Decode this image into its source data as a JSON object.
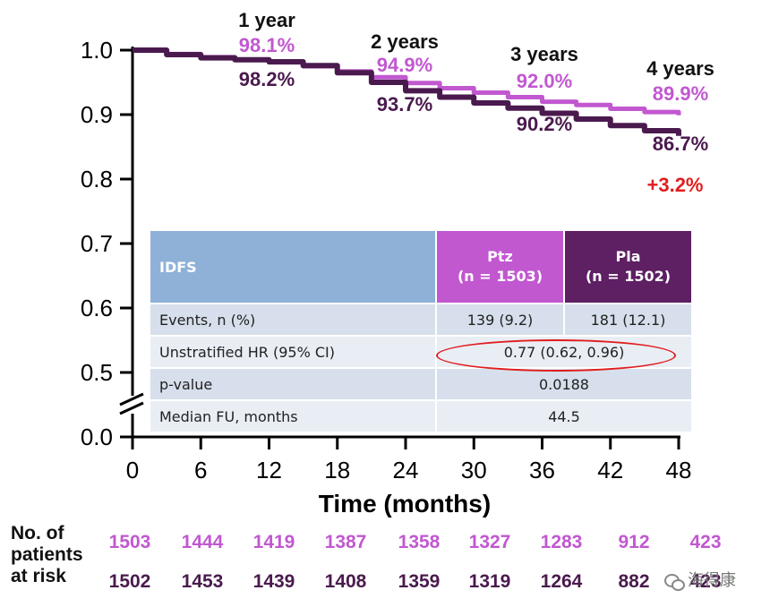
{
  "chart_data": {
    "type": "line",
    "xlabel": "Time (months)",
    "x_ticks": [
      0,
      6,
      12,
      18,
      24,
      30,
      36,
      42,
      48
    ],
    "xlim": [
      0,
      48
    ],
    "y_ticks": [
      "1.0",
      "0.9",
      "0.8",
      "0.7",
      "0.6",
      "0.5",
      "0.0"
    ],
    "ylim": [
      0.0,
      1.0
    ],
    "axis_break": true,
    "series": [
      {
        "key": "ptz",
        "color": "#c158d0",
        "x": [
          0,
          3,
          6,
          9,
          12,
          15,
          18,
          21,
          24,
          27,
          30,
          33,
          36,
          39,
          42,
          45,
          48
        ],
        "y": [
          1.0,
          0.994,
          0.989,
          0.985,
          0.981,
          0.975,
          0.967,
          0.958,
          0.949,
          0.941,
          0.934,
          0.927,
          0.92,
          0.915,
          0.909,
          0.904,
          0.899
        ]
      },
      {
        "key": "pla",
        "color": "#4a1a4e",
        "x": [
          0,
          3,
          6,
          9,
          12,
          15,
          18,
          21,
          24,
          27,
          30,
          33,
          36,
          39,
          42,
          45,
          48
        ],
        "y": [
          1.0,
          0.993,
          0.988,
          0.985,
          0.982,
          0.976,
          0.965,
          0.95,
          0.937,
          0.927,
          0.918,
          0.91,
          0.902,
          0.893,
          0.883,
          0.875,
          0.867
        ]
      }
    ],
    "annotations": [
      {
        "label": "1 year",
        "ptz": "98.1%",
        "pla": "98.2%"
      },
      {
        "label": "2 years",
        "ptz": "94.9%",
        "pla": "93.7%"
      },
      {
        "label": "3 years",
        "ptz": "92.0%",
        "pla": "90.2%"
      },
      {
        "label": "4 years",
        "ptz": "89.9%",
        "pla": "86.7%"
      }
    ],
    "difference": "+3.2%",
    "at_risk": {
      "title_lines": [
        "No. of",
        "patients",
        "at risk"
      ],
      "ptz": [
        "1503",
        "1444",
        "1419",
        "1387",
        "1358",
        "1327",
        "1283",
        "912",
        "423"
      ],
      "pla": [
        "1502",
        "1453",
        "1439",
        "1408",
        "1359",
        "1319",
        "1264",
        "882",
        "423"
      ]
    }
  },
  "table": {
    "header": {
      "label": "IDFS",
      "ptz_name": "Ptz",
      "ptz_n": "(n = 1503)",
      "pla_name": "Pla",
      "pla_n": "(n = 1502)"
    },
    "rows": {
      "events": {
        "label": "Events, n (%)",
        "ptz": "139 (9.2)",
        "pla": "181 (12.1)"
      },
      "hr": {
        "label": "Unstratified HR (95% CI)",
        "value": "0.77 (0.62, 0.96)"
      },
      "pvalue": {
        "label": "p-value",
        "value": "0.0188"
      },
      "median": {
        "label": "Median FU, months",
        "value": "44.5"
      }
    }
  },
  "watermark": {
    "text": "海得康"
  },
  "colors": {
    "ptz": "#c158d0",
    "pla": "#4a1a4e",
    "highlight": "#e11d1d",
    "axis": "#000000"
  }
}
